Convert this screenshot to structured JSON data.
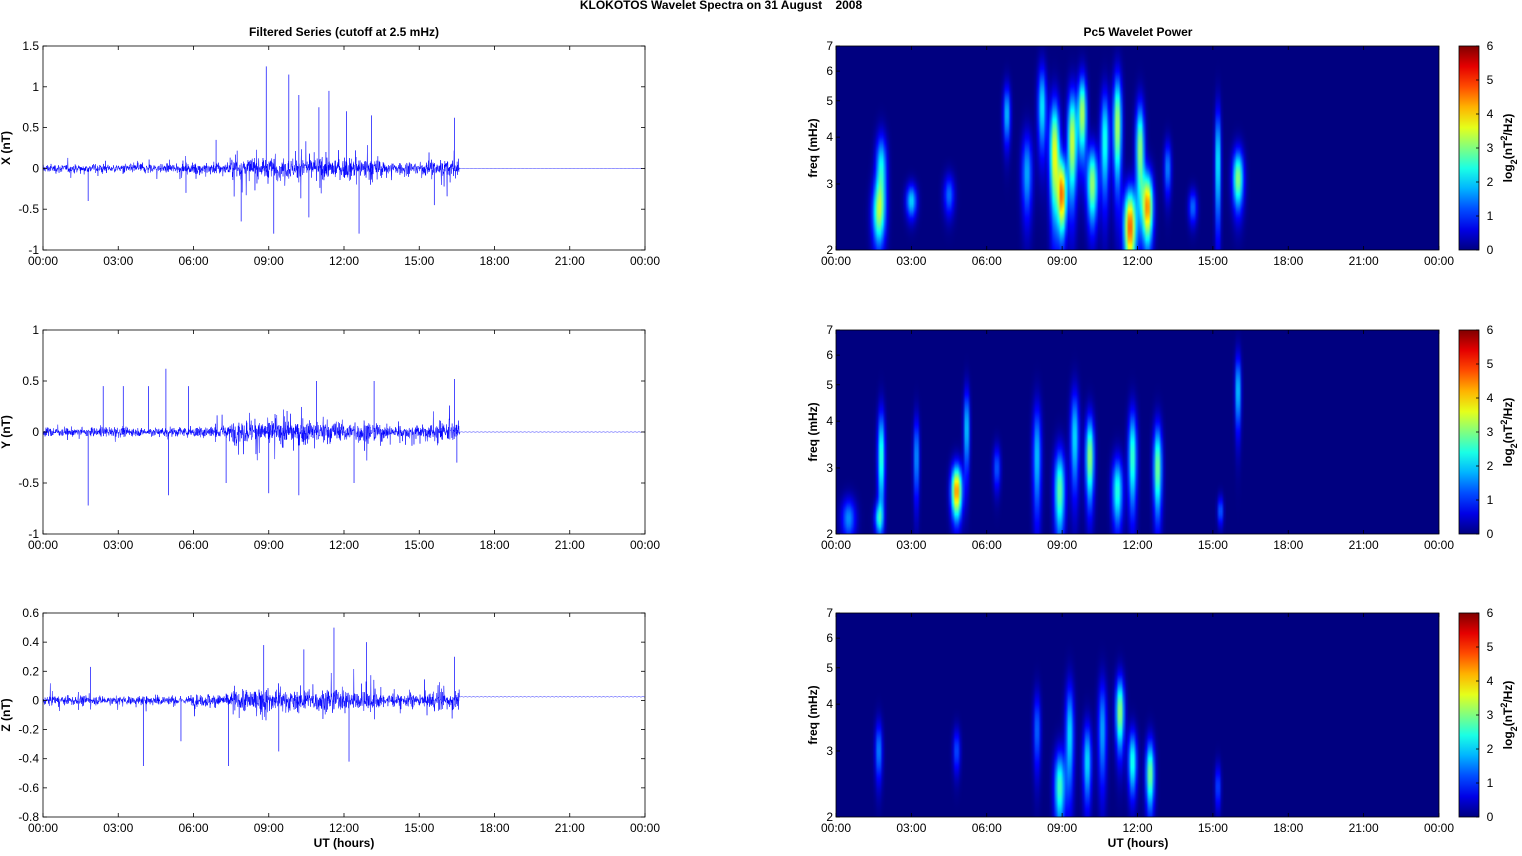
{
  "figure": {
    "title": "KLOKOTOS Wavelet Spectra on 31 August    2008",
    "left_title": "Filtered Series (cutoff at 2.5 mHz)",
    "right_title": "Pc5 Wavelet Power",
    "xlabel": "UT (hours)",
    "freq_label": "freq (mHz)",
    "colorbar_label": "log2(nT2/Hz)",
    "colorbar_label_parts": {
      "prefix": "log",
      "sub": "2",
      "mid": "(nT",
      "sup": "2",
      "suffix": "/Hz)"
    },
    "x_tick_labels": [
      "00:00",
      "03:00",
      "06:00",
      "09:00",
      "12:00",
      "15:00",
      "18:00",
      "21:00",
      "00:00"
    ],
    "trace_color": "#0000ff",
    "colormap": "jet"
  },
  "chart_data": [
    {
      "type": "line",
      "panel": "X",
      "ylabel": "X (nT)",
      "x_range_hours": [
        0,
        24
      ],
      "ylim": [
        -1,
        1.5
      ],
      "yticks": [
        -1,
        -0.5,
        0,
        0.5,
        1,
        1.5
      ],
      "ytick_labels": [
        "-1",
        "-0.5",
        "0",
        "0.5",
        "1",
        "1.5"
      ],
      "active_until_hours": 16.6,
      "quiet_offset": 0.0,
      "peaks": [
        {
          "t": 1.8,
          "v": -0.4
        },
        {
          "t": 5.7,
          "v": -0.3
        },
        {
          "t": 6.9,
          "v": 0.35
        },
        {
          "t": 7.9,
          "v": -0.65
        },
        {
          "t": 8.9,
          "v": 1.25
        },
        {
          "t": 9.2,
          "v": -0.8
        },
        {
          "t": 9.8,
          "v": 1.15
        },
        {
          "t": 10.2,
          "v": 0.9
        },
        {
          "t": 10.6,
          "v": -0.6
        },
        {
          "t": 11.0,
          "v": 0.75
        },
        {
          "t": 11.4,
          "v": 0.95
        },
        {
          "t": 12.1,
          "v": 0.7
        },
        {
          "t": 12.6,
          "v": -0.8
        },
        {
          "t": 13.1,
          "v": 0.65
        },
        {
          "t": 15.6,
          "v": -0.45
        },
        {
          "t": 16.4,
          "v": 0.62
        }
      ]
    },
    {
      "type": "line",
      "panel": "Y",
      "ylabel": "Y (nT)",
      "x_range_hours": [
        0,
        24
      ],
      "ylim": [
        -1,
        1
      ],
      "yticks": [
        -1,
        -0.5,
        0,
        0.5,
        1
      ],
      "ytick_labels": [
        "-1",
        "-0.5",
        "0",
        "0.5",
        "1"
      ],
      "active_until_hours": 16.6,
      "quiet_offset": 0.0,
      "peaks": [
        {
          "t": 1.8,
          "v": -0.72
        },
        {
          "t": 2.4,
          "v": 0.45
        },
        {
          "t": 3.2,
          "v": 0.45
        },
        {
          "t": 4.2,
          "v": 0.45
        },
        {
          "t": 4.9,
          "v": 0.62
        },
        {
          "t": 5.0,
          "v": -0.62
        },
        {
          "t": 5.8,
          "v": 0.45
        },
        {
          "t": 7.3,
          "v": -0.5
        },
        {
          "t": 9.0,
          "v": -0.6
        },
        {
          "t": 10.2,
          "v": -0.62
        },
        {
          "t": 10.9,
          "v": 0.5
        },
        {
          "t": 12.4,
          "v": -0.5
        },
        {
          "t": 13.2,
          "v": 0.5
        },
        {
          "t": 16.4,
          "v": 0.52
        },
        {
          "t": 16.5,
          "v": -0.3
        }
      ]
    },
    {
      "type": "line",
      "panel": "Z",
      "ylabel": "Z (nT)",
      "x_range_hours": [
        0,
        24
      ],
      "ylim": [
        -0.8,
        0.6
      ],
      "yticks": [
        -0.8,
        -0.6,
        -0.4,
        -0.2,
        0,
        0.2,
        0.4,
        0.6
      ],
      "ytick_labels": [
        "-0.8",
        "-0.6",
        "-0.4",
        "-0.2",
        "0",
        "0.2",
        "0.4",
        "0.6"
      ],
      "active_until_hours": 16.6,
      "quiet_offset": 0.025,
      "peaks": [
        {
          "t": 1.9,
          "v": 0.23
        },
        {
          "t": 4.0,
          "v": -0.45
        },
        {
          "t": 5.5,
          "v": -0.28
        },
        {
          "t": 7.4,
          "v": -0.45
        },
        {
          "t": 8.8,
          "v": 0.38
        },
        {
          "t": 9.4,
          "v": -0.35
        },
        {
          "t": 10.4,
          "v": 0.35
        },
        {
          "t": 11.6,
          "v": 0.5
        },
        {
          "t": 12.2,
          "v": -0.42
        },
        {
          "t": 12.9,
          "v": 0.4
        },
        {
          "t": 16.4,
          "v": 0.3
        }
      ]
    },
    {
      "type": "heatmap",
      "panel": "X power",
      "ylabel": "freq (mHz)",
      "x_range_hours": [
        0,
        24
      ],
      "ylim_mhz": [
        2,
        7
      ],
      "yticks": [
        2,
        3,
        4,
        5,
        6,
        7
      ],
      "clim": [
        0,
        6
      ],
      "colorbar_ticks": [
        0,
        1,
        2,
        3,
        4,
        5,
        6
      ],
      "blobs": [
        {
          "t": 1.7,
          "f": 2.5,
          "p": 3.2,
          "wt": 0.18,
          "wf": 0.35
        },
        {
          "t": 1.8,
          "f": 3.3,
          "p": 2.6,
          "wt": 0.15,
          "wf": 0.5
        },
        {
          "t": 3.0,
          "f": 2.7,
          "p": 2.3,
          "wt": 0.15,
          "wf": 0.2
        },
        {
          "t": 4.5,
          "f": 2.8,
          "p": 1.6,
          "wt": 0.15,
          "wf": 0.25
        },
        {
          "t": 6.8,
          "f": 4.6,
          "p": 2.2,
          "wt": 0.1,
          "wf": 0.6
        },
        {
          "t": 7.6,
          "f": 3.2,
          "p": 2.0,
          "wt": 0.15,
          "wf": 0.6
        },
        {
          "t": 8.2,
          "f": 4.8,
          "p": 2.5,
          "wt": 0.12,
          "wf": 0.9
        },
        {
          "t": 8.7,
          "f": 3.6,
          "p": 4.2,
          "wt": 0.14,
          "wf": 0.9
        },
        {
          "t": 9.0,
          "f": 2.8,
          "p": 5.0,
          "wt": 0.12,
          "wf": 0.45
        },
        {
          "t": 9.4,
          "f": 3.9,
          "p": 4.0,
          "wt": 0.13,
          "wf": 0.9
        },
        {
          "t": 9.8,
          "f": 4.6,
          "p": 3.8,
          "wt": 0.12,
          "wf": 0.8
        },
        {
          "t": 10.2,
          "f": 3.0,
          "p": 3.6,
          "wt": 0.15,
          "wf": 0.5
        },
        {
          "t": 10.7,
          "f": 3.9,
          "p": 2.8,
          "wt": 0.12,
          "wf": 0.9
        },
        {
          "t": 11.2,
          "f": 4.3,
          "p": 3.8,
          "wt": 0.12,
          "wf": 1.0
        },
        {
          "t": 11.7,
          "f": 2.3,
          "p": 5.3,
          "wt": 0.17,
          "wf": 0.4
        },
        {
          "t": 12.1,
          "f": 3.7,
          "p": 3.6,
          "wt": 0.12,
          "wf": 0.8
        },
        {
          "t": 12.4,
          "f": 2.6,
          "p": 5.0,
          "wt": 0.15,
          "wf": 0.4
        },
        {
          "t": 13.2,
          "f": 3.3,
          "p": 1.8,
          "wt": 0.1,
          "wf": 0.4
        },
        {
          "t": 14.2,
          "f": 2.6,
          "p": 1.6,
          "wt": 0.12,
          "wf": 0.2
        },
        {
          "t": 15.2,
          "f": 3.4,
          "p": 2.7,
          "wt": 0.08,
          "wf": 0.9
        },
        {
          "t": 16.0,
          "f": 3.1,
          "p": 3.5,
          "wt": 0.15,
          "wf": 0.4
        }
      ]
    },
    {
      "type": "heatmap",
      "panel": "Y power",
      "ylabel": "freq (mHz)",
      "x_range_hours": [
        0,
        24
      ],
      "ylim_mhz": [
        2,
        7
      ],
      "yticks": [
        2,
        3,
        4,
        5,
        6,
        7
      ],
      "clim": [
        0,
        6
      ],
      "colorbar_ticks": [
        0,
        1,
        2,
        3,
        4,
        5,
        6
      ],
      "blobs": [
        {
          "t": 0.5,
          "f": 2.2,
          "p": 1.8,
          "wt": 0.2,
          "wf": 0.2
        },
        {
          "t": 1.8,
          "f": 3.2,
          "p": 3.0,
          "wt": 0.1,
          "wf": 0.7
        },
        {
          "t": 1.7,
          "f": 2.2,
          "p": 2.2,
          "wt": 0.12,
          "wf": 0.15
        },
        {
          "t": 3.2,
          "f": 3.2,
          "p": 2.0,
          "wt": 0.08,
          "wf": 0.6
        },
        {
          "t": 4.8,
          "f": 2.6,
          "p": 5.0,
          "wt": 0.15,
          "wf": 0.3
        },
        {
          "t": 5.2,
          "f": 3.8,
          "p": 2.4,
          "wt": 0.08,
          "wf": 0.7
        },
        {
          "t": 6.4,
          "f": 3.0,
          "p": 1.5,
          "wt": 0.1,
          "wf": 0.3
        },
        {
          "t": 8.0,
          "f": 3.2,
          "p": 2.2,
          "wt": 0.12,
          "wf": 0.8
        },
        {
          "t": 8.9,
          "f": 2.6,
          "p": 3.2,
          "wt": 0.15,
          "wf": 0.5
        },
        {
          "t": 9.5,
          "f": 3.6,
          "p": 2.4,
          "wt": 0.12,
          "wf": 0.8
        },
        {
          "t": 10.1,
          "f": 3.2,
          "p": 3.6,
          "wt": 0.12,
          "wf": 0.6
        },
        {
          "t": 11.2,
          "f": 2.6,
          "p": 2.8,
          "wt": 0.15,
          "wf": 0.4
        },
        {
          "t": 11.8,
          "f": 3.2,
          "p": 3.0,
          "wt": 0.12,
          "wf": 0.7
        },
        {
          "t": 12.8,
          "f": 3.0,
          "p": 3.4,
          "wt": 0.12,
          "wf": 0.6
        },
        {
          "t": 15.3,
          "f": 2.3,
          "p": 1.6,
          "wt": 0.08,
          "wf": 0.15
        },
        {
          "t": 16.0,
          "f": 4.8,
          "p": 2.4,
          "wt": 0.08,
          "wf": 0.8
        }
      ]
    },
    {
      "type": "heatmap",
      "panel": "Z power",
      "ylabel": "freq (mHz)",
      "x_range_hours": [
        0,
        24
      ],
      "ylim_mhz": [
        2,
        7
      ],
      "yticks": [
        2,
        3,
        4,
        5,
        6,
        7
      ],
      "clim": [
        0,
        6
      ],
      "colorbar_ticks": [
        0,
        1,
        2,
        3,
        4,
        5,
        6
      ],
      "blobs": [
        {
          "t": 1.7,
          "f": 3.0,
          "p": 1.8,
          "wt": 0.1,
          "wf": 0.4
        },
        {
          "t": 4.8,
          "f": 3.0,
          "p": 1.4,
          "wt": 0.1,
          "wf": 0.3
        },
        {
          "t": 8.0,
          "f": 3.4,
          "p": 1.6,
          "wt": 0.1,
          "wf": 0.6
        },
        {
          "t": 8.9,
          "f": 2.4,
          "p": 3.0,
          "wt": 0.15,
          "wf": 0.4
        },
        {
          "t": 9.3,
          "f": 3.3,
          "p": 2.4,
          "wt": 0.12,
          "wf": 0.8
        },
        {
          "t": 10.0,
          "f": 2.8,
          "p": 2.4,
          "wt": 0.12,
          "wf": 0.5
        },
        {
          "t": 10.6,
          "f": 3.4,
          "p": 2.0,
          "wt": 0.12,
          "wf": 0.8
        },
        {
          "t": 11.3,
          "f": 3.8,
          "p": 3.6,
          "wt": 0.12,
          "wf": 0.6
        },
        {
          "t": 11.8,
          "f": 2.8,
          "p": 2.8,
          "wt": 0.12,
          "wf": 0.4
        },
        {
          "t": 12.5,
          "f": 2.6,
          "p": 3.4,
          "wt": 0.12,
          "wf": 0.4
        },
        {
          "t": 15.2,
          "f": 2.4,
          "p": 1.4,
          "wt": 0.08,
          "wf": 0.25
        }
      ]
    }
  ]
}
